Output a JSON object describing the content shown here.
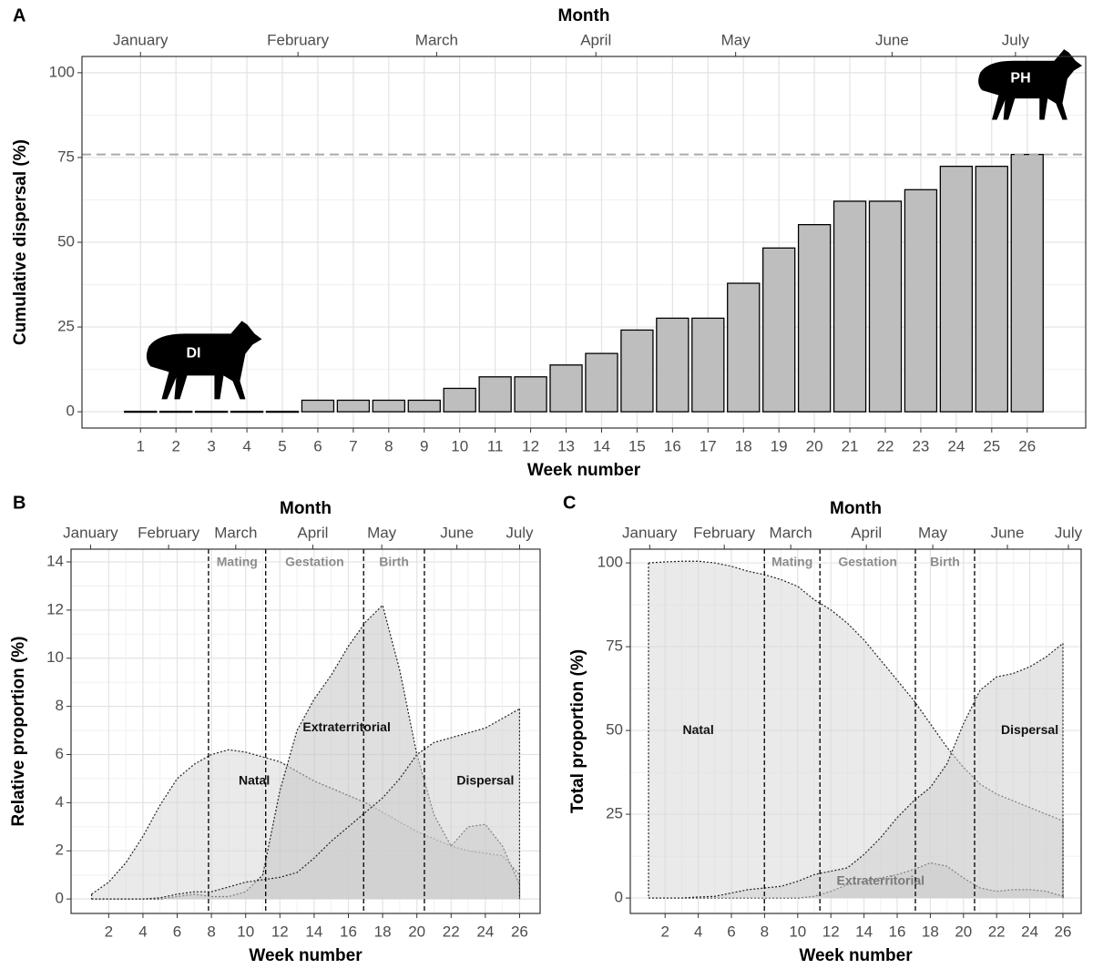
{
  "chart_data": [
    {
      "type": "bar",
      "panel": "A",
      "top_title": "Month",
      "x_label": "Week number",
      "y_label": "Cumulative dispersal (%)",
      "categories": [
        "1",
        "2",
        "3",
        "4",
        "5",
        "6",
        "7",
        "8",
        "9",
        "10",
        "11",
        "12",
        "13",
        "14",
        "15",
        "16",
        "17",
        "18",
        "19",
        "20",
        "21",
        "22",
        "23",
        "24",
        "25",
        "26"
      ],
      "values": [
        0,
        0,
        0,
        0,
        0,
        3.4,
        3.4,
        3.4,
        3.4,
        6.9,
        10.3,
        10.3,
        13.8,
        17.2,
        24.1,
        27.6,
        27.6,
        37.9,
        48.3,
        55.2,
        62.1,
        62.1,
        65.5,
        72.4,
        72.4,
        75.9
      ],
      "color": "#bebebe",
      "hline": 75.9,
      "ylim": [
        -4.8,
        104.8
      ],
      "yticks": [
        0,
        25,
        50,
        75,
        100
      ],
      "grid": true,
      "month_ticks": [
        {
          "value": 1,
          "label": "January"
        },
        {
          "value": 5.44,
          "label": "February"
        },
        {
          "value": 9.35,
          "label": "March"
        },
        {
          "value": 13.84,
          "label": "April"
        },
        {
          "value": 17.78,
          "label": "May"
        },
        {
          "value": 22.19,
          "label": "June"
        },
        {
          "value": 25.67,
          "label": "July"
        }
      ],
      "icons": [
        "DI",
        "PH"
      ]
    },
    {
      "type": "area",
      "panel": "B",
      "top_title": "Month",
      "x_label": "Week number",
      "y_label": "Relative proportion (%)",
      "x": [
        1,
        2,
        3,
        4,
        5,
        6,
        7,
        8,
        9,
        10,
        11,
        12,
        13,
        14,
        15,
        16,
        17,
        18,
        19,
        20,
        21,
        22,
        23,
        24,
        25,
        26
      ],
      "series": [
        {
          "name": "Natal",
          "color": "#d9d9d9",
          "values": [
            0.2,
            0.7,
            1.5,
            2.6,
            3.9,
            5.0,
            5.6,
            6.0,
            6.2,
            6.1,
            5.9,
            5.7,
            5.3,
            4.9,
            4.6,
            4.3,
            4.0,
            3.6,
            3.2,
            2.8,
            2.5,
            2.2,
            2.0,
            1.9,
            1.8,
            1.0
          ]
        },
        {
          "name": "Extraterritorial",
          "color": "#c4c4c4",
          "values": [
            0,
            0,
            0,
            0,
            0,
            0.1,
            0.2,
            0.1,
            0.1,
            0.3,
            1.0,
            4.5,
            7.0,
            8.3,
            9.3,
            10.5,
            11.5,
            12.2,
            9.5,
            6.0,
            3.5,
            2.2,
            3.0,
            3.1,
            2.2,
            0.6
          ]
        },
        {
          "name": "Dispersal",
          "color": "#d0d0d0",
          "values": [
            0,
            0,
            0,
            0,
            0.05,
            0.2,
            0.3,
            0.3,
            0.5,
            0.7,
            0.8,
            0.9,
            1.1,
            1.7,
            2.4,
            3.0,
            3.6,
            4.2,
            5.0,
            6.0,
            6.5,
            6.7,
            6.9,
            7.1,
            7.5,
            7.9
          ]
        }
      ],
      "vlines": [
        7.83,
        11.17,
        16.89,
        20.44
      ],
      "phases": [
        "Mating",
        "Gestation",
        "Birth"
      ],
      "xlim": [
        -0.2,
        27.2
      ],
      "xticks": [
        2,
        4,
        6,
        8,
        10,
        12,
        14,
        16,
        18,
        20,
        22,
        24,
        26
      ],
      "ylim": [
        -0.6,
        14.53
      ],
      "yticks": [
        0,
        2,
        4,
        6,
        8,
        10,
        12,
        14
      ],
      "grid": true,
      "month_ticks": [
        {
          "value": 0.94,
          "label": "January"
        },
        {
          "value": 5.5,
          "label": "February"
        },
        {
          "value": 9.42,
          "label": "March"
        },
        {
          "value": 13.92,
          "label": "April"
        },
        {
          "value": 17.95,
          "label": "May"
        },
        {
          "value": 22.34,
          "label": "June"
        },
        {
          "value": 26.0,
          "label": "July"
        }
      ]
    },
    {
      "type": "area",
      "panel": "C",
      "top_title": "Month",
      "x_label": "Week number",
      "y_label": "Total proportion (%)",
      "x": [
        1,
        2,
        3,
        4,
        5,
        6,
        7,
        8,
        9,
        10,
        11,
        12,
        13,
        14,
        15,
        16,
        17,
        18,
        19,
        20,
        21,
        22,
        23,
        24,
        25,
        26
      ],
      "series": [
        {
          "name": "Natal",
          "color": "#d9d9d9",
          "values": [
            100,
            100.3,
            100.5,
            100.5,
            100,
            99,
            97.5,
            96.5,
            95,
            93,
            89,
            86,
            82,
            77,
            71,
            65,
            59,
            52,
            45,
            39,
            34,
            31,
            29,
            27,
            25,
            23
          ]
        },
        {
          "name": "Extraterritorial",
          "color": "#c4c4c4",
          "values": [
            0,
            0,
            0,
            0,
            0,
            0,
            0,
            0,
            0,
            0,
            0.5,
            2,
            4,
            5,
            6,
            7,
            8.5,
            10.5,
            9.5,
            6,
            3,
            2,
            2.5,
            2.5,
            2,
            0.5
          ]
        },
        {
          "name": "Dispersal",
          "color": "#d0d0d0",
          "values": [
            0,
            0,
            0,
            0.3,
            0.5,
            1.5,
            2.5,
            3,
            3.5,
            5,
            7,
            8,
            9,
            13,
            18,
            24,
            29,
            33,
            40,
            52,
            62,
            66,
            67,
            69,
            72,
            76
          ]
        }
      ],
      "vlines": [
        7.99,
        11.34,
        17.1,
        20.67
      ],
      "phases": [
        "Mating",
        "Gestation",
        "Birth"
      ],
      "xlim": [
        -0.1,
        27.1
      ],
      "xticks": [
        2,
        4,
        6,
        8,
        10,
        12,
        14,
        16,
        18,
        20,
        22,
        24,
        26
      ],
      "ylim": [
        -4.6,
        104.1
      ],
      "yticks": [
        0,
        25,
        50,
        75,
        100
      ],
      "grid": true,
      "month_ticks": [
        {
          "value": 1.07,
          "label": "January"
        },
        {
          "value": 5.57,
          "label": "February"
        },
        {
          "value": 9.58,
          "label": "March"
        },
        {
          "value": 14.14,
          "label": "April"
        },
        {
          "value": 18.15,
          "label": "May"
        },
        {
          "value": 22.65,
          "label": "June"
        },
        {
          "value": 26.33,
          "label": "July"
        }
      ]
    }
  ]
}
